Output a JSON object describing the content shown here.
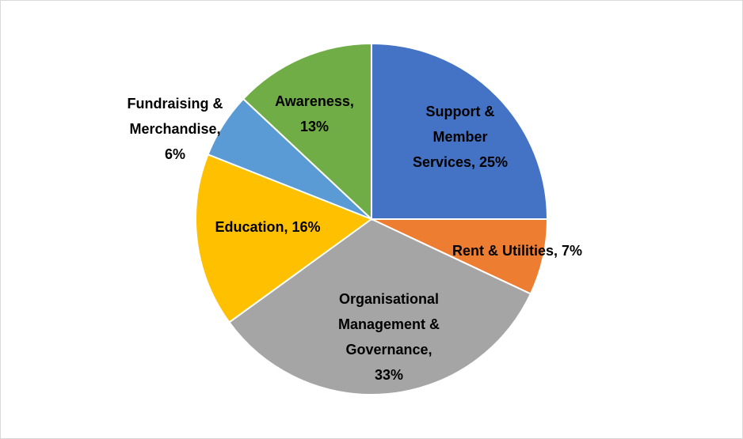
{
  "chart_data": {
    "type": "pie",
    "values": [
      25,
      7,
      33,
      16,
      6,
      13
    ],
    "value_labels": [
      "Support & Member Services, 25%",
      "Rent & Utilities, 7%",
      "Organisational Management & Governance, 33%",
      "Education, 16%",
      "Fundraising & Merchandise, 6%",
      "Awareness, 13%"
    ],
    "colors": [
      "#4472c4",
      "#ed7d31",
      "#a5a5a5",
      "#ffc000",
      "#5b9bd5",
      "#70ad47"
    ]
  }
}
